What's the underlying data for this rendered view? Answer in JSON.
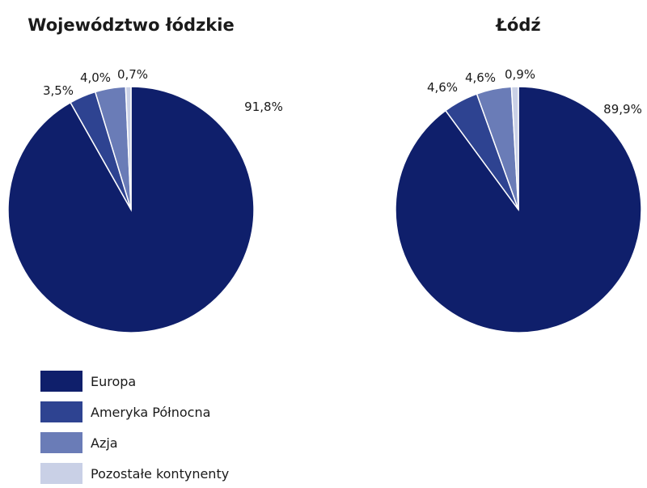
{
  "chart_data": [
    {
      "type": "pie",
      "title": "Województwo łódzkie",
      "categories": [
        "Europa",
        "Ameryka Północna",
        "Azja",
        "Pozostałe kontynenty"
      ],
      "values": [
        91.8,
        3.5,
        4.0,
        0.7
      ],
      "labels": [
        "91,8%",
        "3,5%",
        "4,0%",
        "0,7%"
      ]
    },
    {
      "type": "pie",
      "title": "Łódź",
      "categories": [
        "Europa",
        "Ameryka Północna",
        "Azja",
        "Pozostałe kontynenty"
      ],
      "values": [
        89.9,
        4.6,
        4.6,
        0.9
      ],
      "labels": [
        "89,9%",
        "4,6%",
        "4,6%",
        "0,9%"
      ]
    }
  ],
  "legend": {
    "placement": "bottom-left",
    "items": [
      {
        "label": "Europa",
        "color": "#0f1f6b"
      },
      {
        "label": "Ameryka Północna",
        "color": "#2e4391"
      },
      {
        "label": "Azja",
        "color": "#6a7cb7"
      },
      {
        "label": "Pozostałe kontynenty",
        "color": "#c9d0e6"
      }
    ]
  }
}
